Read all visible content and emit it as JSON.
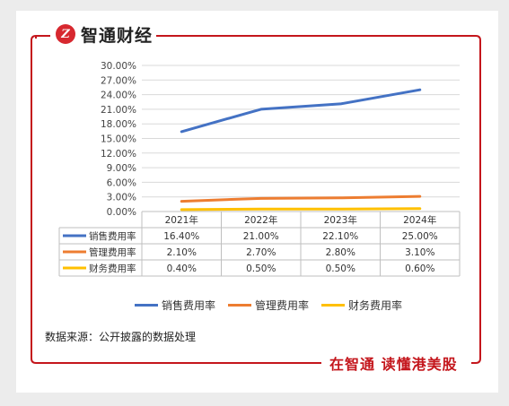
{
  "brand": {
    "badge": "Z",
    "name": "智通财经",
    "slogan": "在智通 读懂港美股",
    "accent": "#c4161c"
  },
  "source_note": "数据来源：公开披露的数据处理",
  "chart_data": {
    "type": "line",
    "categories": [
      "2021年",
      "2022年",
      "2023年",
      "2024年"
    ],
    "ylim": [
      0,
      30
    ],
    "yticks": [
      "0.00%",
      "3.00%",
      "6.00%",
      "9.00%",
      "12.00%",
      "15.00%",
      "18.00%",
      "21.00%",
      "24.00%",
      "27.00%",
      "30.00%"
    ],
    "series": [
      {
        "name": "销售费用率",
        "color": "#4472c4",
        "values": [
          16.4,
          21.0,
          22.1,
          25.0
        ],
        "labels": [
          "16.40%",
          "21.00%",
          "22.10%",
          "25.00%"
        ]
      },
      {
        "name": "管理费用率",
        "color": "#ed7d31",
        "values": [
          2.1,
          2.7,
          2.8,
          3.1
        ],
        "labels": [
          "2.10%",
          "2.70%",
          "2.80%",
          "3.10%"
        ]
      },
      {
        "name": "财务费用率",
        "color": "#ffc000",
        "values": [
          0.4,
          0.5,
          0.5,
          0.6
        ],
        "labels": [
          "0.40%",
          "0.50%",
          "0.50%",
          "0.60%"
        ]
      }
    ],
    "grid": true,
    "legend": "bottom",
    "data_table": true
  }
}
